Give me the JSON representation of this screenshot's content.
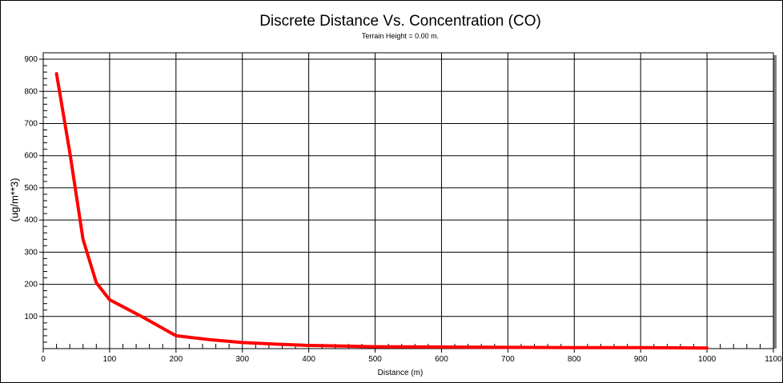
{
  "chart_data": {
    "type": "line",
    "title": "Discrete Distance Vs. Concentration (CO)",
    "subtitle": "Terrain Height = 0.00 m.",
    "xlabel": "Distance (m)",
    "ylabel": "(ug/m**3)",
    "xlim": [
      0,
      1100
    ],
    "ylim": [
      0,
      920
    ],
    "xticks": [
      0,
      100,
      200,
      300,
      400,
      500,
      600,
      700,
      800,
      900,
      1000,
      1100
    ],
    "yticks": [
      100,
      200,
      300,
      400,
      500,
      600,
      700,
      800,
      900
    ],
    "grid": true,
    "series": [
      {
        "color": "#ff0000",
        "x": [
          20,
          40,
          60,
          80,
          100,
          150,
          200,
          250,
          300,
          350,
          400,
          450,
          500,
          600,
          700,
          800,
          900,
          1000
        ],
        "y": [
          855,
          610,
          340,
          205,
          152,
          98,
          40,
          28,
          19,
          14,
          10,
          8,
          6,
          5,
          4,
          3,
          3,
          2
        ]
      }
    ]
  }
}
